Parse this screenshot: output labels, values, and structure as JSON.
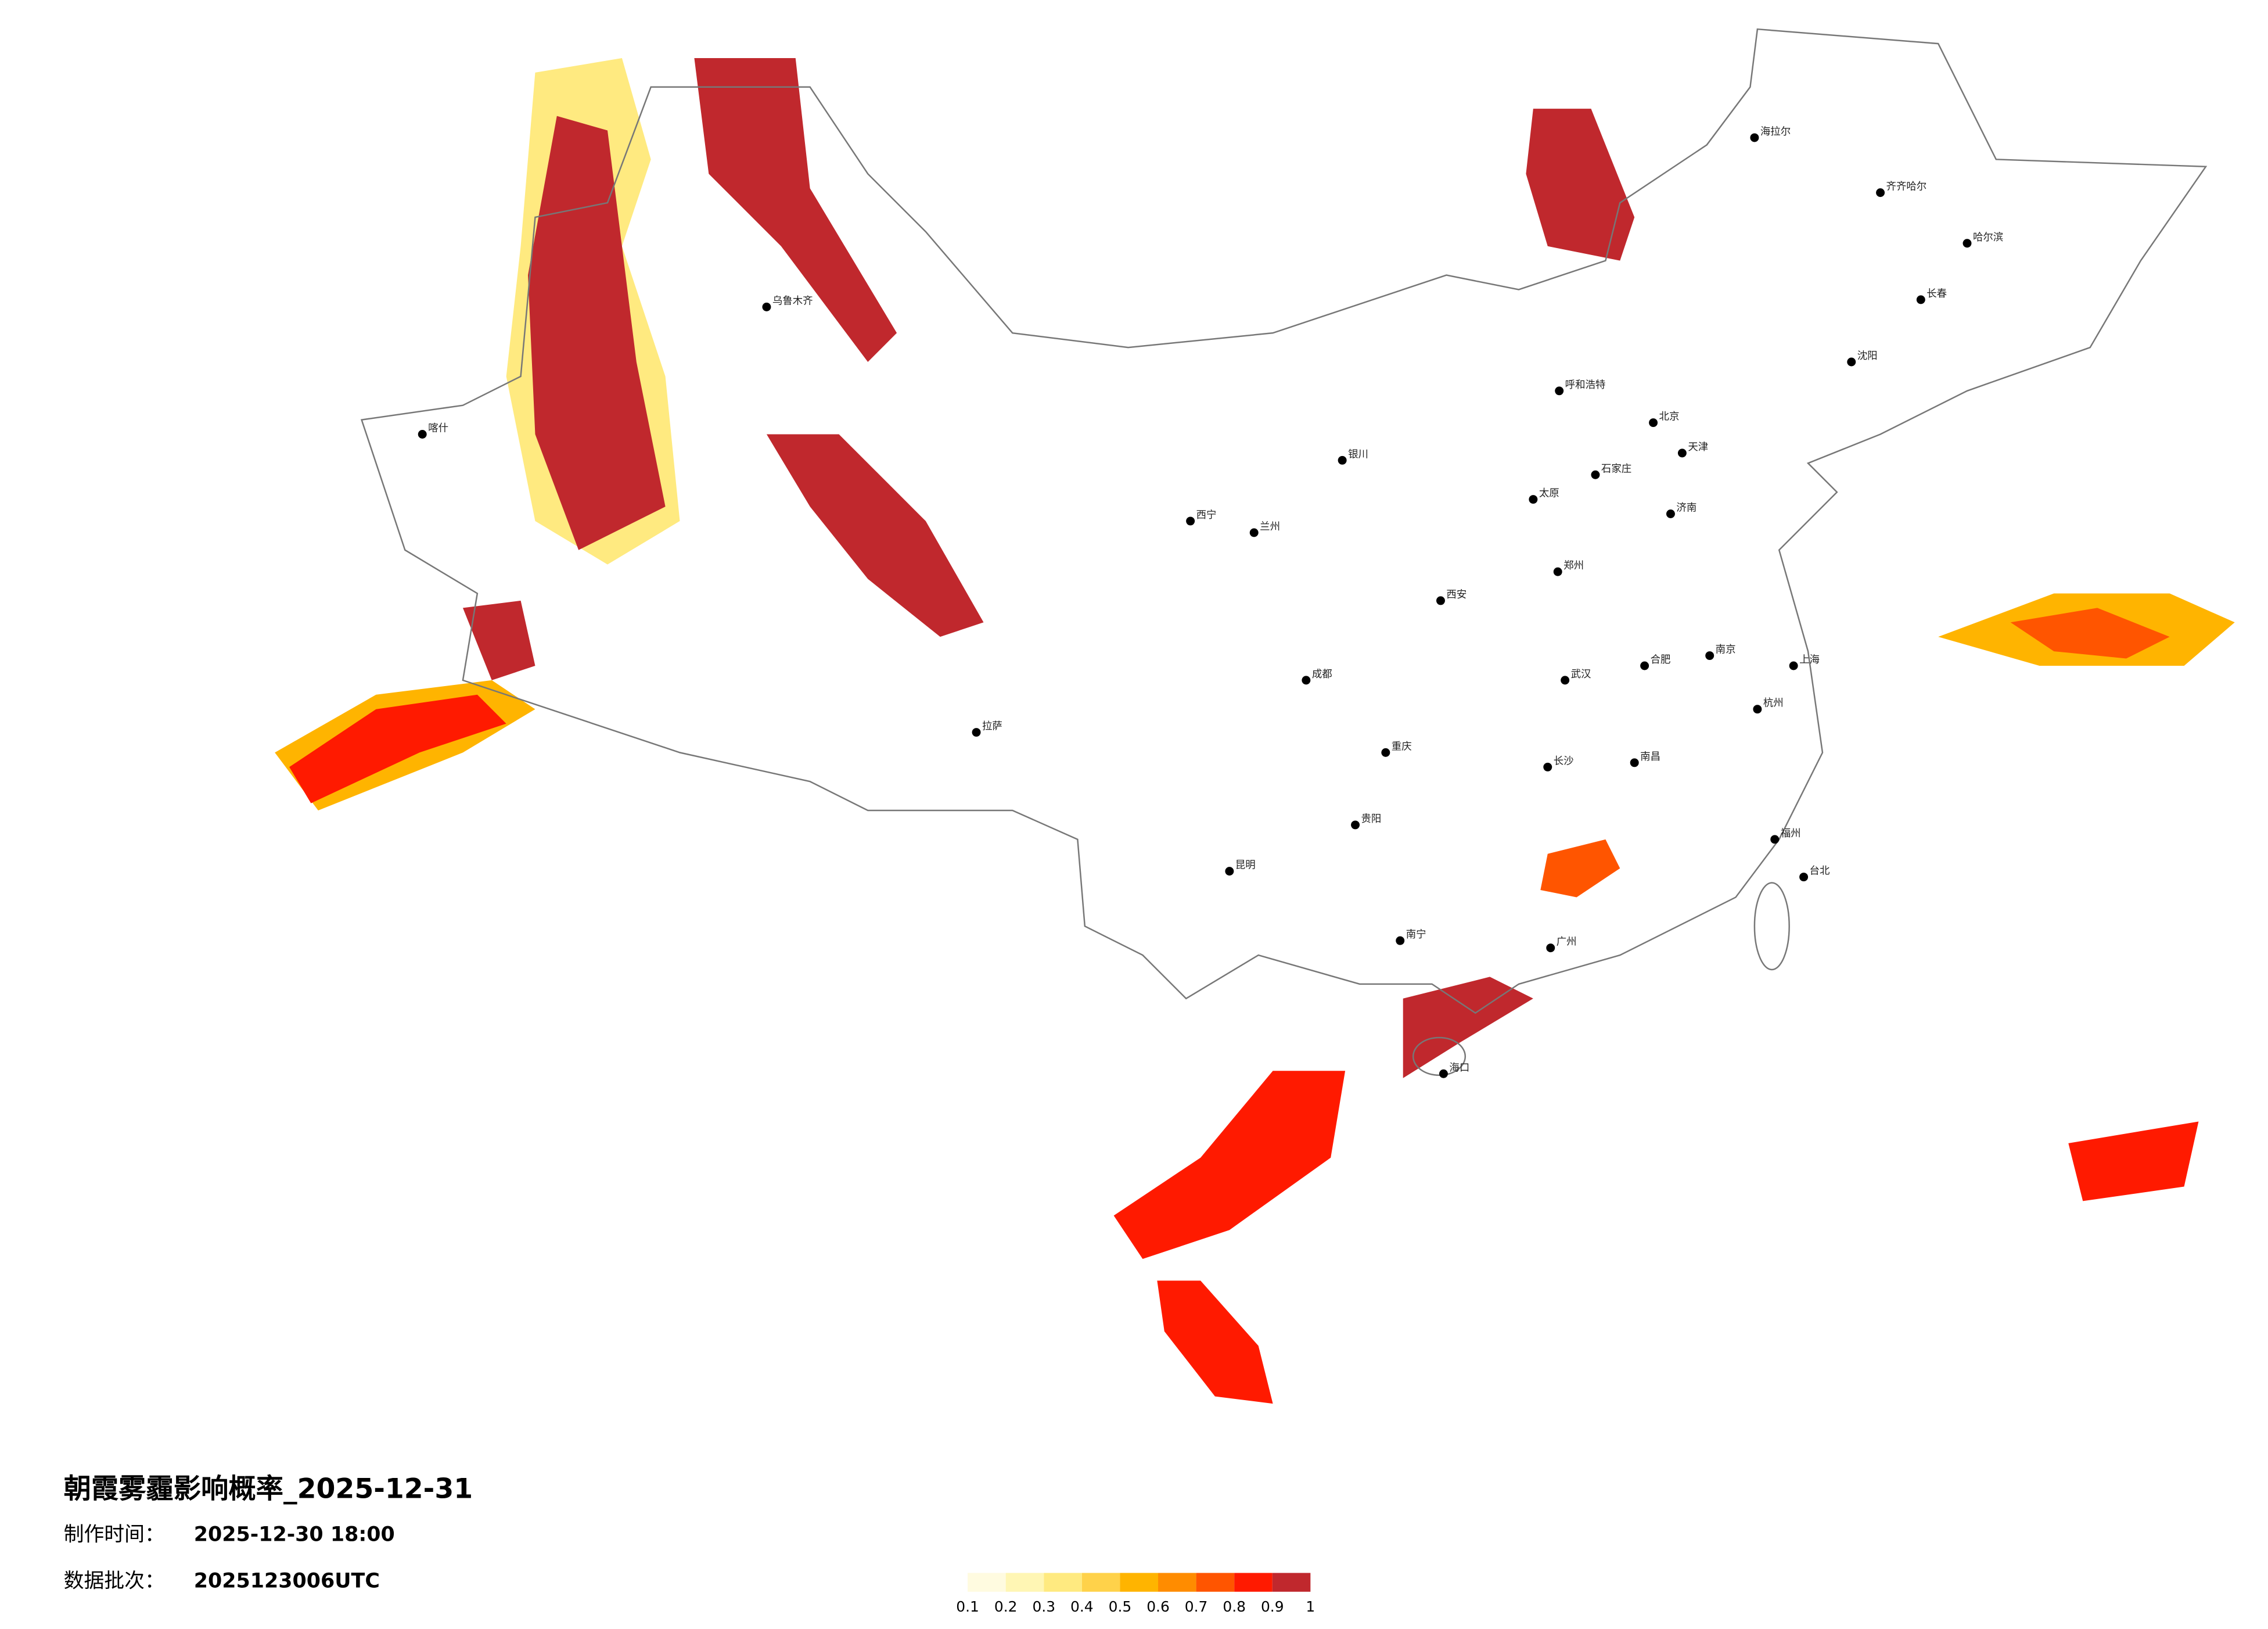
{
  "title": "朝霞雾霾影响概率_2025-12-31",
  "production_time": {
    "label": "制作时间：",
    "value": "2025-12-30 18:00"
  },
  "data_batch": {
    "label": "数据批次：",
    "value": "2025123006UTC"
  },
  "legend": {
    "ticks": [
      0.1,
      0.2,
      0.3,
      0.4,
      0.5,
      0.6,
      0.7,
      0.8,
      0.9,
      1
    ],
    "colors": [
      "#fffbe0",
      "#fff6b4",
      "#ffea80",
      "#ffd24a",
      "#ffb400",
      "#ff8c00",
      "#ff5500",
      "#ff1a00",
      "#c0282d"
    ]
  },
  "cities": [
    "海拉尔",
    "齐齐哈尔",
    "哈尔滨",
    "长春",
    "沈阳",
    "北京",
    "天津",
    "呼和浩特",
    "石家庄",
    "太原",
    "济南",
    "郑州",
    "西安",
    "兰州",
    "西宁",
    "银川",
    "乌鲁木齐",
    "喀什",
    "拉萨",
    "成都",
    "重庆",
    "贵阳",
    "昆明",
    "南宁",
    "广州",
    "福州",
    "台北",
    "杭州",
    "上海",
    "南京",
    "合肥",
    "武汉",
    "长沙",
    "南昌",
    "海口"
  ]
}
